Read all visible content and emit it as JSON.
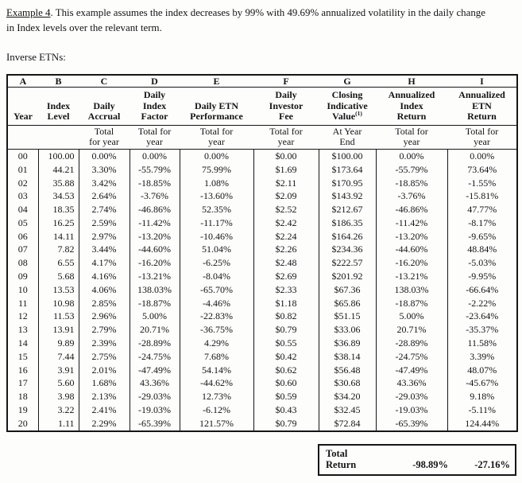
{
  "intro": {
    "example_label": "Example 4",
    "text": ". This example assumes the index decreases by 99% with 49.69% annualized volatility in the daily change\nin Index levels over the relevant term."
  },
  "section_label": "Inverse ETNs:",
  "table": {
    "columns": [
      {
        "letter": "A",
        "header": "Year",
        "subheader": ""
      },
      {
        "letter": "B",
        "header": "Index\nLevel",
        "subheader": ""
      },
      {
        "letter": "C",
        "header": "Daily\nAccrual",
        "subheader": "Total\nfor year"
      },
      {
        "letter": "D",
        "header": "Daily\nIndex\nFactor",
        "subheader": "Total for\nyear"
      },
      {
        "letter": "E",
        "header": "Daily ETN\nPerformance",
        "subheader": "Total for\nyear"
      },
      {
        "letter": "F",
        "header": "Daily\nInvestor\nFee",
        "subheader": "Total for\nyear"
      },
      {
        "letter": "G",
        "header": "Closing\nIndicative\nValue",
        "footnote": "(1)",
        "subheader": "At Year\nEnd"
      },
      {
        "letter": "H",
        "header": "Annualized\nIndex\nReturn",
        "subheader": "Total for\nyear"
      },
      {
        "letter": "I",
        "header": "Annualized\nETN\nReturn",
        "subheader": "Total for\nyear"
      }
    ],
    "rows": [
      [
        "00",
        "100.00",
        "0.00%",
        "0.00%",
        "0.00%",
        "$0.00",
        "$100.00",
        "0.00%",
        "0.00%"
      ],
      [
        "01",
        "44.21",
        "3.30%",
        "-55.79%",
        "75.99%",
        "$1.69",
        "$173.64",
        "-55.79%",
        "73.64%"
      ],
      [
        "02",
        "35.88",
        "3.42%",
        "-18.85%",
        "1.08%",
        "$2.11",
        "$170.95",
        "-18.85%",
        "-1.55%"
      ],
      [
        "03",
        "34.53",
        "2.64%",
        "-3.76%",
        "-13.60%",
        "$2.09",
        "$143.92",
        "-3.76%",
        "-15.81%"
      ],
      [
        "04",
        "18.35",
        "2.74%",
        "-46.86%",
        "52.35%",
        "$2.52",
        "$212.67",
        "-46.86%",
        "47.77%"
      ],
      [
        "05",
        "16.25",
        "2.59%",
        "-11.42%",
        "-11.17%",
        "$2.42",
        "$186.35",
        "-11.42%",
        "-8.17%"
      ],
      [
        "06",
        "14.11",
        "2.97%",
        "-13.20%",
        "-10.46%",
        "$2.24",
        "$164.26",
        "-13.20%",
        "-9.65%"
      ],
      [
        "07",
        "7.82",
        "3.44%",
        "-44.60%",
        "51.04%",
        "$2.26",
        "$234.36",
        "-44.60%",
        "48.84%"
      ],
      [
        "08",
        "6.55",
        "4.17%",
        "-16.20%",
        "-6.25%",
        "$2.48",
        "$222.57",
        "-16.20%",
        "-5.03%"
      ],
      [
        "09",
        "5.68",
        "4.16%",
        "-13.21%",
        "-8.04%",
        "$2.69",
        "$201.92",
        "-13.21%",
        "-9.95%"
      ],
      [
        "10",
        "13.53",
        "4.06%",
        "138.03%",
        "-65.70%",
        "$2.33",
        "$67.36",
        "138.03%",
        "-66.64%"
      ],
      [
        "11",
        "10.98",
        "2.85%",
        "-18.87%",
        "-4.46%",
        "$1.18",
        "$65.86",
        "-18.87%",
        "-2.22%"
      ],
      [
        "12",
        "11.53",
        "2.96%",
        "5.00%",
        "-22.83%",
        "$0.82",
        "$51.15",
        "5.00%",
        "-23.64%"
      ],
      [
        "13",
        "13.91",
        "2.79%",
        "20.71%",
        "-36.75%",
        "$0.79",
        "$33.06",
        "20.71%",
        "-35.37%"
      ],
      [
        "14",
        "9.89",
        "2.39%",
        "-28.89%",
        "4.29%",
        "$0.55",
        "$36.89",
        "-28.89%",
        "11.58%"
      ],
      [
        "15",
        "7.44",
        "2.75%",
        "-24.75%",
        "7.68%",
        "$0.42",
        "$38.14",
        "-24.75%",
        "3.39%"
      ],
      [
        "16",
        "3.91",
        "2.01%",
        "-47.49%",
        "54.14%",
        "$0.62",
        "$56.48",
        "-47.49%",
        "48.07%"
      ],
      [
        "17",
        "5.60",
        "1.68%",
        "43.36%",
        "-44.62%",
        "$0.60",
        "$30.68",
        "43.36%",
        "-45.67%"
      ],
      [
        "18",
        "3.98",
        "2.13%",
        "-29.03%",
        "12.73%",
        "$0.59",
        "$34.20",
        "-29.03%",
        "9.18%"
      ],
      [
        "19",
        "3.22",
        "2.41%",
        "-19.03%",
        "-6.12%",
        "$0.43",
        "$32.45",
        "-19.03%",
        "-5.11%"
      ],
      [
        "20",
        "1.11",
        "2.29%",
        "-65.39%",
        "121.57%",
        "$0.79",
        "$72.84",
        "-65.39%",
        "124.44%"
      ]
    ]
  },
  "totals": {
    "label": "Total Return",
    "annualized_index_return": "-98.89%",
    "annualized_etn_return": "-27.16%"
  }
}
